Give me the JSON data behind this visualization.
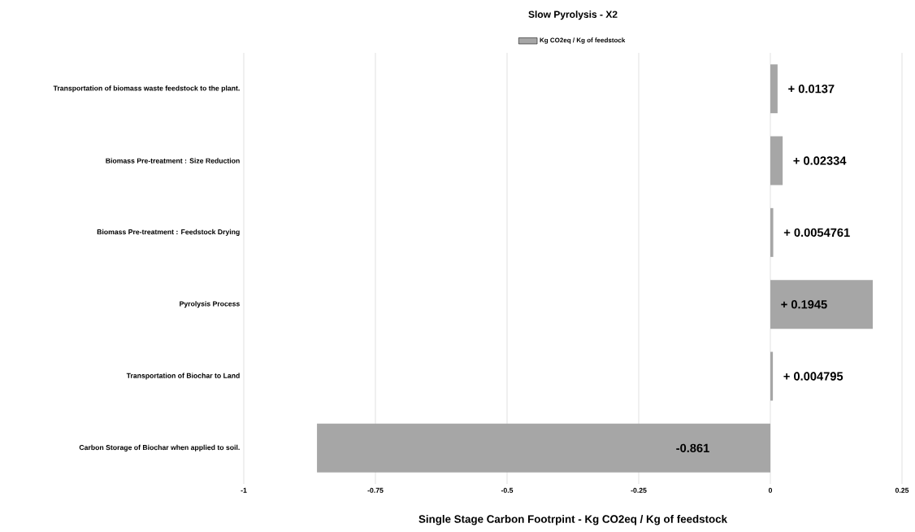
{
  "chart_data": {
    "type": "bar",
    "orientation": "horizontal",
    "title": "Slow Pyrolysis  - X2",
    "xlabel": "Single Stage Carbon Footrpint - Kg CO2eq / Kg of feedstock",
    "categories": [
      "Transportation of biomass waste  feedstock to the plant.",
      "Biomass Pre-treatment : Size Reduction",
      "Biomass Pre-treatment : Feedstock Drying",
      "Pyrolysis Process",
      "Transportation of Biochar to Land",
      "Carbon Storage of Biochar when applied to soil."
    ],
    "series": [
      {
        "name": "Kg CO2eq / Kg of feedstock",
        "color": "#a6a6a6",
        "values": [
          0.0137,
          0.02334,
          0.0054761,
          0.1945,
          0.004795,
          -0.861
        ],
        "value_labels": [
          "+ 0.0137",
          "+ 0.02334",
          "+ 0.0054761",
          "+ 0.1945",
          "+ 0.004795",
          "-0.861"
        ]
      }
    ],
    "xlim": [
      -1,
      0.25
    ],
    "xticks": [
      -1,
      -0.75,
      -0.5,
      -0.25,
      0,
      0.25
    ],
    "grid": "x",
    "legend": "top"
  }
}
